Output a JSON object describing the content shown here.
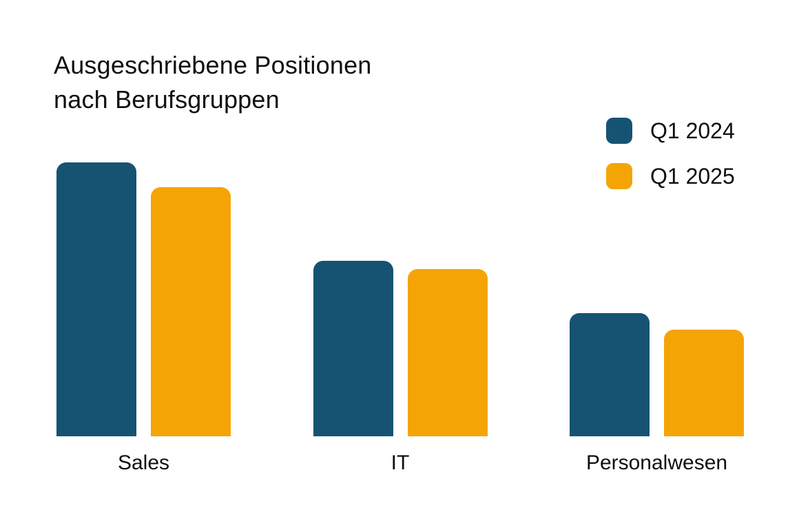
{
  "chart": {
    "title_line1": "Ausgeschriebene Positionen",
    "title_line2": "nach Berufsgruppen"
  },
  "chart_data": {
    "type": "bar",
    "title": "Ausgeschriebene Positionen nach Berufsgruppen",
    "categories": [
      "Sales",
      "IT",
      "Personalwesen"
    ],
    "series": [
      {
        "name": "Q1 2024",
        "color": "#165372",
        "values": [
          100,
          64,
          45
        ]
      },
      {
        "name": "Q1 2025",
        "color": "#F5A406",
        "values": [
          91,
          61,
          39
        ]
      }
    ],
    "ylim": [
      0,
      100
    ],
    "value_axis_shown": false,
    "gridlines": false,
    "legend_position": "top-right",
    "xlabel": "",
    "ylabel": ""
  }
}
